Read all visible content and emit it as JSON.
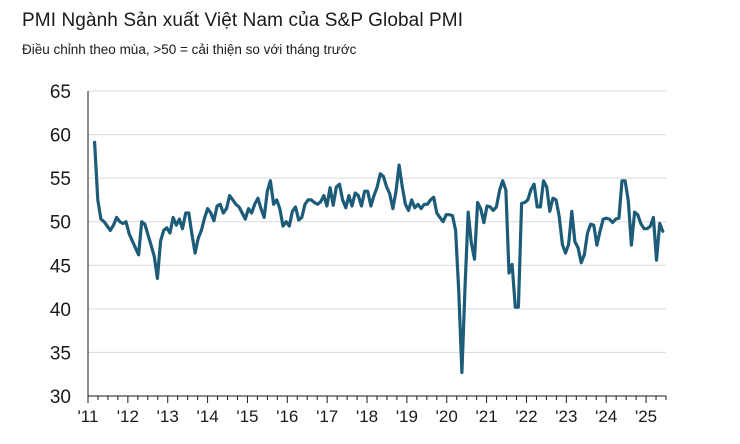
{
  "header": {
    "title": "PMI Ngành Sản xuất Việt Nam của S&P Global PMI",
    "subtitle": "Điều chỉnh theo mùa, >50 = cải thiện so với tháng trước"
  },
  "chart_data": {
    "type": "line",
    "title": "PMI Ngành Sản xuất Việt Nam của S&P Global PMI",
    "subtitle": "Điều chỉnh theo mùa, >50 = cải thiện so với tháng trước",
    "xlabel": "",
    "ylabel": "",
    "ylim": [
      30,
      65
    ],
    "yticks": [
      "30",
      "35",
      "40",
      "45",
      "50",
      "55",
      "60",
      "65"
    ],
    "xticks": [
      "'11",
      "'12",
      "'13",
      "'14",
      "'15",
      "'16",
      "'17",
      "'18",
      "'19",
      "'20",
      "'21",
      "'22",
      "'23",
      "'24",
      "'25"
    ],
    "grid": "horizontal",
    "line_color": "#1d5c78",
    "x_start": "2011-03",
    "series": [
      {
        "values": [
          59.1,
          52.5,
          50.3,
          50.0,
          49.5,
          49.0,
          49.6,
          50.5,
          50.0,
          49.8,
          50.0,
          48.6,
          47.8,
          47.0,
          46.2,
          50.0,
          49.7,
          48.5,
          47.3,
          46.0,
          43.5,
          47.8,
          49.0,
          49.3,
          48.7,
          50.5,
          49.6,
          50.3,
          49.2,
          51.0,
          51.0,
          48.5,
          46.4,
          48.1,
          49.0,
          50.4,
          51.5,
          51.0,
          50.1,
          51.8,
          52.0,
          51.0,
          51.5,
          53.0,
          52.5,
          52.0,
          51.7,
          51.0,
          50.3,
          51.5,
          51.0,
          52.0,
          52.7,
          51.5,
          50.5,
          53.5,
          54.7,
          52.0,
          52.5,
          51.5,
          49.5,
          50.0,
          49.5,
          51.2,
          51.7,
          50.2,
          50.5,
          52.0,
          52.5,
          52.5,
          52.2,
          52.0,
          52.3,
          53.0,
          51.8,
          53.9,
          51.9,
          54.0,
          54.3,
          52.5,
          51.6,
          53.0,
          51.8,
          53.3,
          53.0,
          51.8,
          53.5,
          53.5,
          51.8,
          53.0,
          54.0,
          55.5,
          55.2,
          54.0,
          53.2,
          51.5,
          53.5,
          56.5,
          54.0,
          52.0,
          51.3,
          52.5,
          51.6,
          52.0,
          51.5,
          52.0,
          52.0,
          52.5,
          52.8,
          51.0,
          50.5,
          50.0,
          50.8,
          50.8,
          50.7,
          49.0,
          41.9,
          32.7,
          42.7,
          51.1,
          47.6,
          45.7,
          52.2,
          51.5,
          49.9,
          51.8,
          51.7,
          51.3,
          51.7,
          53.6,
          54.7,
          53.6,
          44.1,
          45.1,
          40.2,
          40.2,
          52.1,
          52.2,
          52.5,
          53.7,
          54.3,
          51.7,
          51.7,
          54.7,
          54.0,
          51.2,
          52.7,
          52.5,
          50.6,
          47.4,
          46.4,
          47.4,
          51.2,
          47.7,
          47.0,
          45.3,
          46.2,
          48.7,
          49.7,
          49.6,
          47.3,
          48.9,
          50.3,
          50.4,
          50.3,
          49.9,
          50.3,
          50.4,
          54.7,
          54.7,
          52.4,
          47.3,
          51.1,
          50.8,
          49.8,
          49.2,
          49.2,
          49.5,
          50.5,
          45.6,
          49.8,
          48.9
        ]
      }
    ]
  }
}
